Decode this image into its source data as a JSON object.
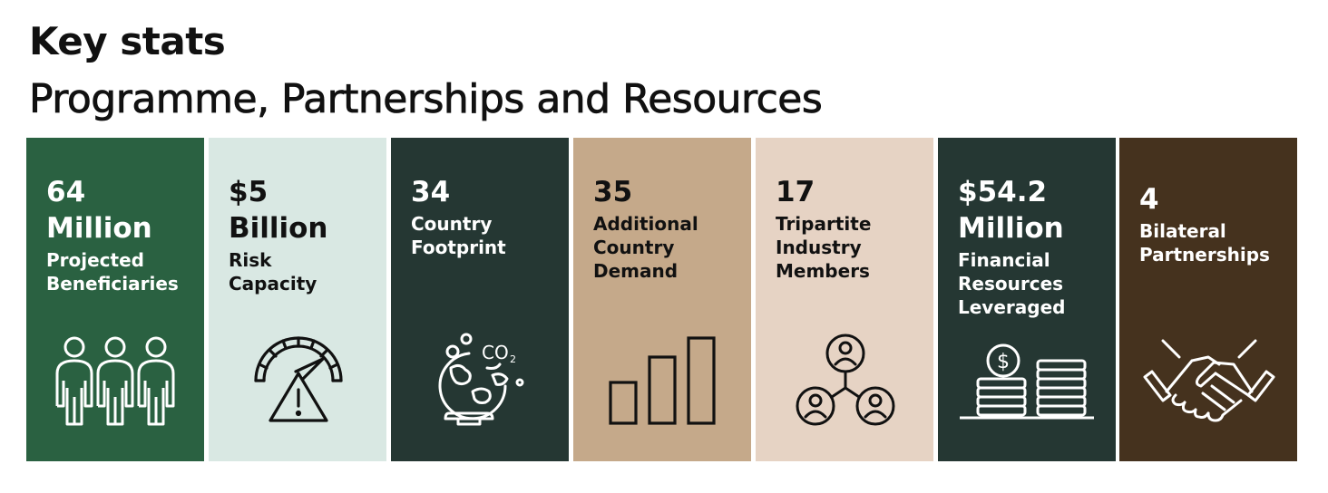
{
  "header": {
    "title": "Key stats",
    "subtitle": "Programme, Partnerships and Resources"
  },
  "colors": {
    "card_green": "#2a6141",
    "card_mint": "#d9e8e3",
    "card_darkgreen": "#253733",
    "card_tan": "#c5a98a",
    "card_beige": "#e6d3c4",
    "card_brown": "#45321e"
  },
  "cards": [
    {
      "value": "64\nMillion",
      "label": "Projected\nBeneficiaries",
      "icon": "people-icon"
    },
    {
      "value": "$5\nBillion",
      "label": "Risk\nCapacity",
      "icon": "risk-gauge-icon"
    },
    {
      "value": "34",
      "label": "Country\nFootprint",
      "icon": "globe-co2-icon"
    },
    {
      "value": "35",
      "label": "Additional\nCountry\nDemand",
      "icon": "bar-chart-icon"
    },
    {
      "value": "17",
      "label": "Tripartite\nIndustry\nMembers",
      "icon": "network-people-icon"
    },
    {
      "value": "$54.2\nMillion",
      "label": "Financial\nResources\nLeveraged",
      "icon": "coin-stacks-icon"
    },
    {
      "value": "4",
      "label": "Bilateral\nPartnerships",
      "icon": "handshake-icon"
    }
  ]
}
